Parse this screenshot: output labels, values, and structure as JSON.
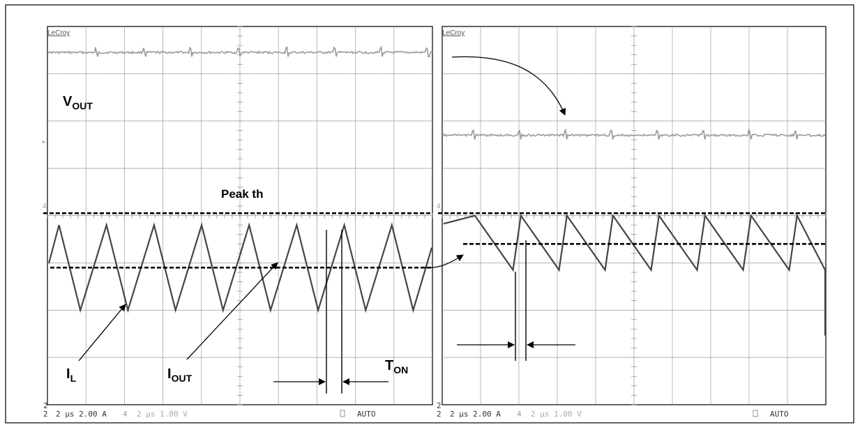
{
  "chart_data": [
    {
      "type": "line",
      "panel": "left",
      "brand": "LeCroy",
      "annotations": {
        "vout_main": "V",
        "vout_sub": "OUT",
        "peak": "Peak th",
        "il_main": "I",
        "il_sub": "L",
        "iout_main": "I",
        "iout_sub": "OUT",
        "ton_main": "T",
        "ton_sub": "ON"
      },
      "status_bar": {
        "ch_top": "2",
        "ch_bottom": "2",
        "settings_left": "2 μs 2.00 A",
        "settings_right": "2 μs 1.00 V",
        "mode": "AUTO"
      },
      "grid": {
        "divisions_x": 10,
        "divisions_y": 8
      },
      "series": [
        {
          "kind": "output-voltage",
          "level_div": 0.55,
          "spike_positions_div": [
            1.25,
            2.5,
            3.7,
            4.95,
            6.2,
            7.45,
            8.65,
            9.85
          ]
        },
        {
          "kind": "inductor-current",
          "peak_div": 4.2,
          "valley_div": 6.0,
          "period_div": 1.235,
          "first_peak_div": 0.3,
          "ramp_fraction": 0.55
        }
      ],
      "reference_lines_div": {
        "peak_threshold": 3.95,
        "average": 5.1
      }
    },
    {
      "type": "line",
      "panel": "right",
      "brand": "LeCroy",
      "status_bar": {
        "ch_top": "2",
        "ch_bottom": "2",
        "settings_left": "2 μs 2.00 A",
        "settings_right": "2 μs 1.00 V",
        "mode": "AUTO"
      },
      "grid": {
        "divisions_x": 10,
        "divisions_y": 8
      },
      "series": [
        {
          "kind": "output-voltage",
          "level_div": 2.3,
          "spike_positions_div": [
            0.8,
            2.0,
            3.2,
            4.4,
            5.6,
            6.8,
            8.0,
            9.2
          ]
        },
        {
          "kind": "inductor-current",
          "peak_div": 4.0,
          "valley_div": 5.15,
          "period_div": 1.2,
          "first_peak_div": 0.85,
          "ramp_fraction": 0.17
        }
      ],
      "reference_lines_div": {
        "peak_threshold": 3.95,
        "average": 4.6
      }
    }
  ]
}
